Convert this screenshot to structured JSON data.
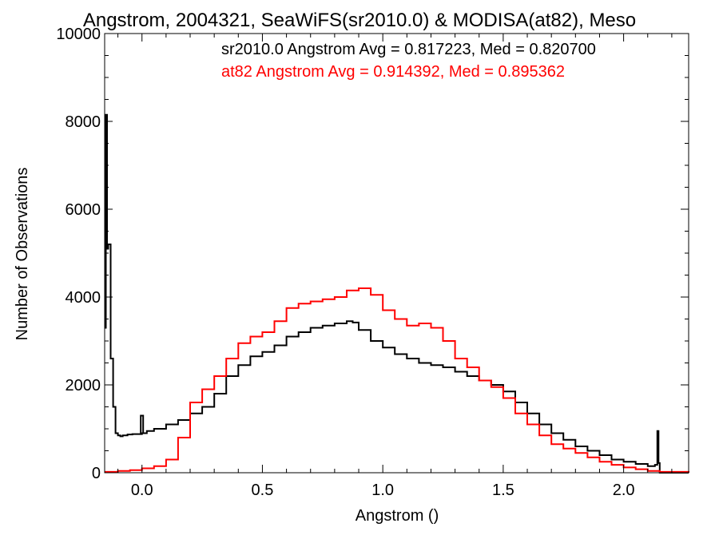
{
  "chart_data": {
    "type": "line",
    "title": "Angstrom, 2004321, SeaWiFS(sr2010.0) & MODISA(at82), Meso",
    "xlabel": "Angstrom ()",
    "ylabel": "Number of Observations",
    "xlim": [
      -0.155,
      2.27
    ],
    "ylim": [
      0,
      10000
    ],
    "x_ticks": [
      0.0,
      0.5,
      1.0,
      1.5,
      2.0
    ],
    "x_tick_labels": [
      "0.0",
      "0.5",
      "1.0",
      "1.5",
      "2.0"
    ],
    "y_ticks": [
      0,
      2000,
      4000,
      6000,
      8000,
      10000
    ],
    "y_tick_labels": [
      "0",
      "2000",
      "4000",
      "6000",
      "8000",
      "10000"
    ],
    "grid": false,
    "legend_position": "top-right",
    "annotations": [
      {
        "text": "sr2010.0 Angstrom Avg = 0.817223, Med = 0.820700",
        "color": "#000000"
      },
      {
        "text": "at82 Angstrom Avg = 0.914392, Med = 0.895362",
        "color": "#ff0000"
      }
    ],
    "series": [
      {
        "color": "#000000",
        "style": "step",
        "x": [
          -0.155,
          -0.15,
          -0.145,
          -0.14,
          -0.13,
          -0.12,
          -0.11,
          -0.1,
          -0.09,
          -0.08,
          -0.06,
          -0.04,
          -0.02,
          0.0,
          0.02,
          0.05,
          0.1,
          0.15,
          0.2,
          0.25,
          0.3,
          0.35,
          0.4,
          0.45,
          0.5,
          0.55,
          0.6,
          0.65,
          0.7,
          0.75,
          0.8,
          0.85,
          0.875,
          0.9,
          0.95,
          1.0,
          1.05,
          1.1,
          1.15,
          1.2,
          1.25,
          1.3,
          1.35,
          1.4,
          1.45,
          1.5,
          1.55,
          1.6,
          1.65,
          1.7,
          1.75,
          1.8,
          1.85,
          1.9,
          1.95,
          2.0,
          2.05,
          2.1,
          2.13,
          2.14,
          2.145,
          2.15,
          2.2,
          2.27
        ],
        "values": [
          3300,
          8150,
          5100,
          5200,
          2600,
          1500,
          900,
          850,
          830,
          850,
          870,
          880,
          880,
          900,
          950,
          1000,
          1100,
          1200,
          1350,
          1500,
          1800,
          2200,
          2450,
          2650,
          2750,
          2900,
          3100,
          3200,
          3300,
          3350,
          3400,
          3450,
          3420,
          3250,
          3000,
          2850,
          2700,
          2600,
          2500,
          2450,
          2400,
          2300,
          2200,
          2100,
          2000,
          1850,
          1600,
          1350,
          1100,
          900,
          750,
          600,
          500,
          400,
          300,
          250,
          200,
          150,
          180,
          950,
          220,
          0,
          0,
          0
        ],
        "spike_note": "additional narrow spike near x=0.0 to about 1300"
      },
      {
        "color": "#ff0000",
        "style": "step",
        "x": [
          -0.155,
          -0.1,
          -0.05,
          0.0,
          0.05,
          0.1,
          0.15,
          0.2,
          0.25,
          0.3,
          0.35,
          0.4,
          0.45,
          0.5,
          0.55,
          0.6,
          0.65,
          0.7,
          0.75,
          0.8,
          0.85,
          0.9,
          0.95,
          1.0,
          1.05,
          1.1,
          1.15,
          1.2,
          1.25,
          1.3,
          1.35,
          1.4,
          1.45,
          1.5,
          1.55,
          1.6,
          1.65,
          1.7,
          1.75,
          1.8,
          1.85,
          1.9,
          1.95,
          2.0,
          2.05,
          2.1,
          2.15,
          2.27
        ],
        "values": [
          20,
          40,
          60,
          100,
          150,
          300,
          800,
          1600,
          1900,
          2200,
          2600,
          2950,
          3100,
          3200,
          3450,
          3750,
          3850,
          3900,
          3950,
          4000,
          4150,
          4200,
          4050,
          3700,
          3500,
          3350,
          3400,
          3300,
          3000,
          2600,
          2400,
          2100,
          1950,
          1700,
          1350,
          1100,
          850,
          650,
          550,
          450,
          350,
          250,
          180,
          120,
          80,
          40,
          20,
          0
        ]
      }
    ]
  }
}
